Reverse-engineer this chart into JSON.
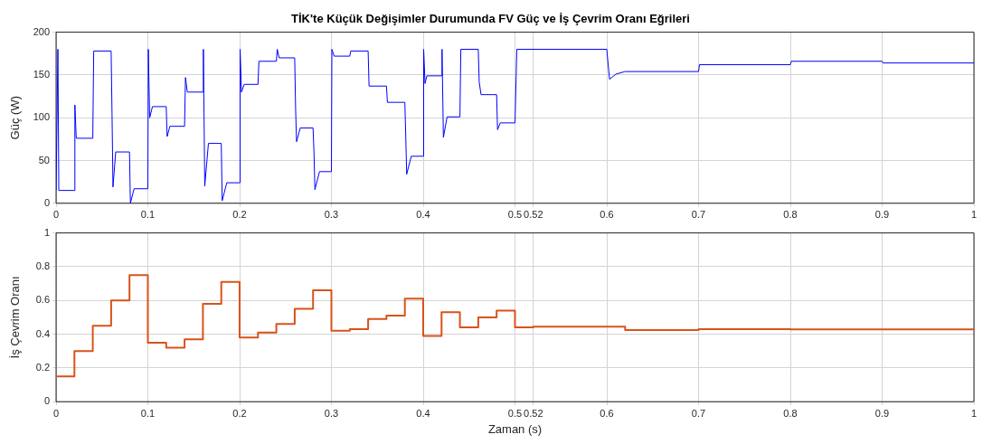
{
  "chart_data": [
    {
      "type": "line",
      "title": "TİK'te Küçük Değişimler Durumunda FV Güç ve İş Çevrim Oranı Eğrileri",
      "ylabel": "Güç (W)",
      "color": "#0000ff",
      "x": [
        0,
        0.002,
        0.003,
        0.02,
        0.0205,
        0.022,
        0.04,
        0.041,
        0.06,
        0.061,
        0.062,
        0.065,
        0.08,
        0.081,
        0.085,
        0.1,
        0.1005,
        0.102,
        0.105,
        0.12,
        0.121,
        0.124,
        0.14,
        0.141,
        0.143,
        0.16,
        0.1605,
        0.162,
        0.166,
        0.18,
        0.181,
        0.186,
        0.2,
        0.2005,
        0.202,
        0.205,
        0.22,
        0.221,
        0.24,
        0.241,
        0.243,
        0.26,
        0.261,
        0.262,
        0.266,
        0.28,
        0.281,
        0.282,
        0.287,
        0.3,
        0.3005,
        0.303,
        0.32,
        0.321,
        0.34,
        0.341,
        0.36,
        0.361,
        0.38,
        0.381,
        0.382,
        0.387,
        0.4,
        0.4005,
        0.402,
        0.404,
        0.42,
        0.4205,
        0.422,
        0.426,
        0.44,
        0.441,
        0.46,
        0.461,
        0.463,
        0.48,
        0.481,
        0.484,
        0.5,
        0.502,
        0.6,
        0.603,
        0.61,
        0.62,
        0.7,
        0.701,
        0.8,
        0.801,
        0.9,
        0.901,
        1
      ],
      "values": [
        15,
        180,
        15,
        15,
        115,
        76,
        76,
        178,
        178,
        103,
        19,
        60,
        60,
        0,
        17,
        17,
        180,
        100,
        113,
        113,
        78,
        90,
        90,
        147,
        130,
        130,
        180,
        20,
        70,
        70,
        3,
        24,
        24,
        180,
        130,
        139,
        139,
        166,
        166,
        180,
        170,
        170,
        110,
        72,
        88,
        88,
        60,
        16,
        37,
        37,
        180,
        172,
        172,
        178,
        178,
        137,
        137,
        118,
        118,
        78,
        34,
        55,
        55,
        180,
        140,
        149,
        149,
        180,
        77,
        101,
        101,
        180,
        180,
        142,
        127,
        127,
        86,
        94,
        94,
        180,
        180,
        145,
        151,
        154,
        154,
        162,
        162,
        166,
        166,
        164,
        164
      ],
      "xlim": [
        0,
        1
      ],
      "xticks": [
        0,
        0.1,
        0.2,
        0.3,
        0.4,
        0.5,
        0.52,
        0.6,
        0.7,
        0.8,
        0.9,
        1
      ],
      "ylim": [
        0,
        200
      ],
      "yticks": [
        0,
        50,
        100,
        150,
        200
      ],
      "grid": true
    },
    {
      "type": "step",
      "ylabel": "İş Çevrim Oranı",
      "xlabel": "Zaman (s)",
      "color": "#d95319",
      "x": [
        0,
        0.02,
        0.04,
        0.06,
        0.08,
        0.1,
        0.12,
        0.14,
        0.16,
        0.18,
        0.2,
        0.22,
        0.24,
        0.26,
        0.28,
        0.3,
        0.32,
        0.34,
        0.36,
        0.38,
        0.4,
        0.42,
        0.44,
        0.46,
        0.48,
        0.5,
        0.52,
        0.6,
        0.62,
        0.7,
        0.8,
        1
      ],
      "values": [
        0.15,
        0.3,
        0.45,
        0.6,
        0.75,
        0.35,
        0.32,
        0.37,
        0.58,
        0.71,
        0.38,
        0.41,
        0.46,
        0.55,
        0.66,
        0.42,
        0.43,
        0.49,
        0.51,
        0.61,
        0.39,
        0.53,
        0.44,
        0.5,
        0.54,
        0.44,
        0.445,
        0.445,
        0.425,
        0.43,
        0.428,
        0.428
      ],
      "xlim": [
        0,
        1
      ],
      "xticks": [
        0,
        0.1,
        0.2,
        0.3,
        0.4,
        0.5,
        0.52,
        0.6,
        0.7,
        0.8,
        0.9,
        1
      ],
      "ylim": [
        0,
        1
      ],
      "yticks": [
        0,
        0.2,
        0.4,
        0.6,
        0.8,
        1
      ],
      "grid": true
    }
  ]
}
